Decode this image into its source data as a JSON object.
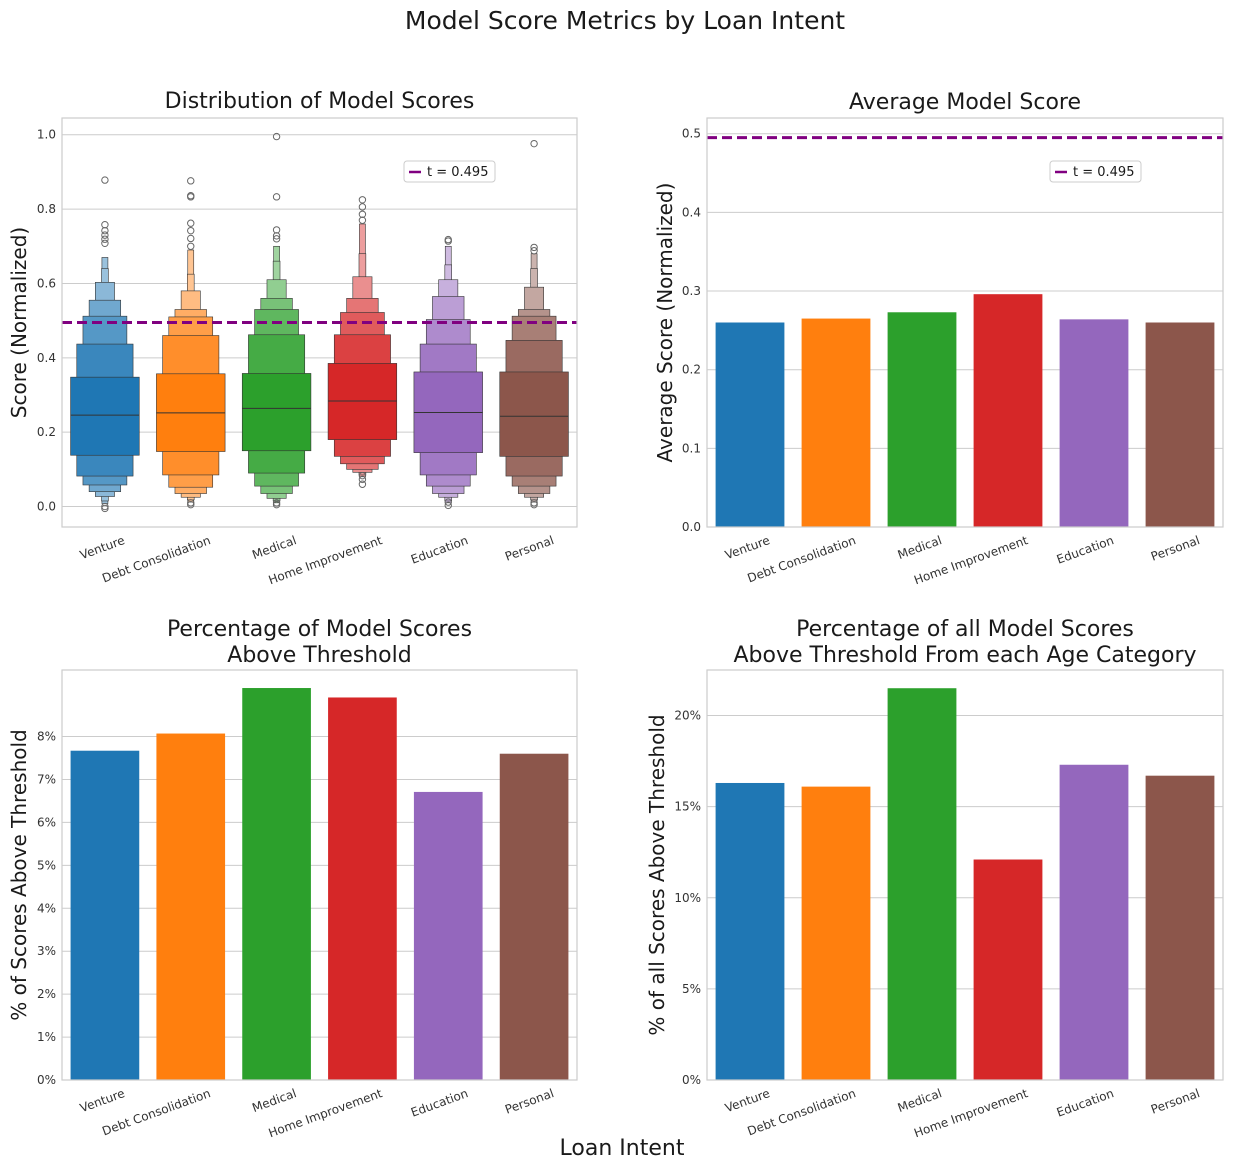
{
  "figure": {
    "suptitle": "Model Score Metrics by Loan Intent",
    "supxlabel": "Loan Intent"
  },
  "colors": {
    "venture": "#1f77b4",
    "debt_consolidation": "#ff7f0e",
    "medical": "#2ca02c",
    "home_improvement": "#d62728",
    "education": "#9467bd",
    "personal": "#8c564b",
    "threshold_line": "#800080",
    "grid": "#cccccc"
  },
  "chart_data": [
    {
      "type": "boxen",
      "title": "Distribution of Model Scores",
      "xlabel": "",
      "ylabel": "Score (Normalized)",
      "ylim": [
        -0.055,
        1.045
      ],
      "yticks": [
        "0.0",
        "0.2",
        "0.4",
        "0.6",
        "0.8",
        "1.0"
      ],
      "ytick_values": [
        0,
        0.2,
        0.4,
        0.6,
        0.8,
        1.0
      ],
      "categories": [
        "Venture",
        "Debt Consolidation",
        "Medical",
        "Home Improvement",
        "Education",
        "Personal"
      ],
      "threshold": 0.495,
      "legend_label": "t = 0.495",
      "legend_position": "upper-right",
      "grid": true,
      "boxes": [
        {
          "median": 0.246,
          "levels": [
            [
              0.138,
              0.348
            ],
            [
              0.082,
              0.437
            ],
            [
              0.058,
              0.512
            ],
            [
              0.04,
              0.555
            ],
            [
              0.027,
              0.603
            ],
            [
              0.015,
              0.64
            ],
            [
              0.008,
              0.67
            ]
          ],
          "outliers": [
            0.878,
            0.758,
            0.742,
            0.73,
            0.719,
            0.708,
            0.0,
            -0.005
          ]
        },
        {
          "median": 0.252,
          "levels": [
            [
              0.148,
              0.357
            ],
            [
              0.085,
              0.46
            ],
            [
              0.052,
              0.51
            ],
            [
              0.035,
              0.53
            ],
            [
              0.025,
              0.58
            ],
            [
              0.018,
              0.625
            ],
            [
              0.012,
              0.69
            ]
          ],
          "outliers": [
            0.876,
            0.836,
            0.833,
            0.762,
            0.742,
            0.721,
            0.7,
            0.01,
            0.005
          ]
        },
        {
          "median": 0.264,
          "levels": [
            [
              0.15,
              0.358
            ],
            [
              0.09,
              0.462
            ],
            [
              0.055,
              0.53
            ],
            [
              0.035,
              0.56
            ],
            [
              0.022,
              0.61
            ],
            [
              0.015,
              0.66
            ],
            [
              0.01,
              0.7
            ]
          ],
          "outliers": [
            0.995,
            0.833,
            0.744,
            0.728,
            0.72,
            0.01,
            0.005
          ]
        },
        {
          "median": 0.284,
          "levels": [
            [
              0.18,
              0.385
            ],
            [
              0.135,
              0.462
            ],
            [
              0.115,
              0.522
            ],
            [
              0.1,
              0.56
            ],
            [
              0.092,
              0.618
            ],
            [
              0.085,
              0.68
            ],
            [
              0.08,
              0.76
            ]
          ],
          "outliers": [
            0.825,
            0.806,
            0.786,
            0.77,
            0.083,
            0.073,
            0.06
          ]
        },
        {
          "median": 0.253,
          "levels": [
            [
              0.145,
              0.362
            ],
            [
              0.085,
              0.437
            ],
            [
              0.055,
              0.503
            ],
            [
              0.035,
              0.565
            ],
            [
              0.025,
              0.61
            ],
            [
              0.015,
              0.65
            ],
            [
              0.01,
              0.7
            ]
          ],
          "outliers": [
            0.718,
            0.714,
            0.012,
            0.003
          ]
        },
        {
          "median": 0.243,
          "levels": [
            [
              0.135,
              0.362
            ],
            [
              0.082,
              0.447
            ],
            [
              0.055,
              0.512
            ],
            [
              0.035,
              0.53
            ],
            [
              0.025,
              0.59
            ],
            [
              0.018,
              0.64
            ],
            [
              0.012,
              0.68
            ]
          ],
          "outliers": [
            0.976,
            0.697,
            0.688,
            0.01,
            0.005
          ]
        }
      ]
    },
    {
      "type": "bar",
      "title": "Average Model Score",
      "xlabel": "",
      "ylabel": "Average Score (Normalized)",
      "ylim": [
        0,
        0.52
      ],
      "yticks": [
        "0.0",
        "0.1",
        "0.2",
        "0.3",
        "0.4",
        "0.5"
      ],
      "ytick_values": [
        0,
        0.1,
        0.2,
        0.3,
        0.4,
        0.5
      ],
      "categories": [
        "Venture",
        "Debt Consolidation",
        "Medical",
        "Home Improvement",
        "Education",
        "Personal"
      ],
      "values": [
        0.26,
        0.265,
        0.273,
        0.296,
        0.264,
        0.26
      ],
      "threshold": 0.495,
      "legend_label": "t = 0.495",
      "legend_position": "upper-right",
      "grid": true
    },
    {
      "type": "bar",
      "title": "Percentage of Model Scores\nAbove Threshold",
      "xlabel": "",
      "ylabel": "% of Scores Above Threshold",
      "ylim": [
        0,
        0.0955
      ],
      "yticks": [
        "0%",
        "1%",
        "2%",
        "3%",
        "4%",
        "5%",
        "6%",
        "7%",
        "8%"
      ],
      "ytick_values": [
        0,
        0.01,
        0.02,
        0.03,
        0.04,
        0.05,
        0.06,
        0.07,
        0.08
      ],
      "categories": [
        "Venture",
        "Debt Consolidation",
        "Medical",
        "Home Improvement",
        "Education",
        "Personal"
      ],
      "values": [
        0.0767,
        0.0807,
        0.0913,
        0.0891,
        0.0671,
        0.076
      ],
      "grid": true
    },
    {
      "type": "bar",
      "title": "Percentage of all Model Scores\nAbove Threshold From each Age Category",
      "xlabel": "",
      "ylabel": "% of all Scores Above Threshold",
      "ylim": [
        0,
        0.225
      ],
      "yticks": [
        "0%",
        "5%",
        "10%",
        "15%",
        "20%"
      ],
      "ytick_values": [
        0,
        0.05,
        0.1,
        0.15,
        0.2
      ],
      "categories": [
        "Venture",
        "Debt Consolidation",
        "Medical",
        "Home Improvement",
        "Education",
        "Personal"
      ],
      "values": [
        0.163,
        0.161,
        0.215,
        0.121,
        0.173,
        0.167
      ],
      "grid": true
    }
  ]
}
